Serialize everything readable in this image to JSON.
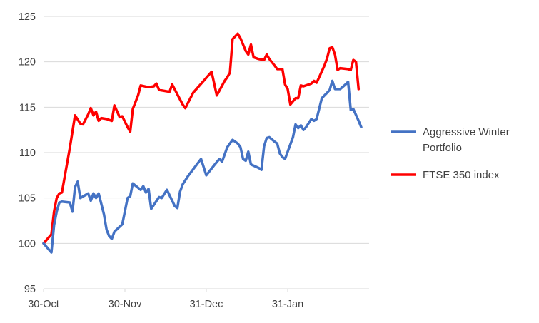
{
  "chart_data": {
    "type": "line",
    "y_ticks": [
      "95",
      "100",
      "105",
      "110",
      "115",
      "120",
      "125"
    ],
    "ylim": [
      95,
      125
    ],
    "x_ticks": [
      {
        "label": "30-Oct",
        "day": 0
      },
      {
        "label": "30-Nov",
        "day": 31
      },
      {
        "label": "31-Dec",
        "day": 62
      },
      {
        "label": "31-Jan",
        "day": 93
      }
    ],
    "xlim_days": [
      0,
      124
    ],
    "grid": "horizontal",
    "legend_position": "right",
    "series": [
      {
        "name": "Aggressive Winter Portfolio",
        "color": "#4472C4",
        "points": [
          [
            0,
            100
          ],
          [
            3,
            99
          ],
          [
            4,
            102
          ],
          [
            5,
            103.5
          ],
          [
            6,
            104.5
          ],
          [
            7,
            104.6
          ],
          [
            10,
            104.5
          ],
          [
            11,
            103.5
          ],
          [
            12,
            106.2
          ],
          [
            13,
            106.8
          ],
          [
            14,
            105
          ],
          [
            17,
            105.5
          ],
          [
            18,
            104.7
          ],
          [
            19,
            105.5
          ],
          [
            20,
            105
          ],
          [
            21,
            105.5
          ],
          [
            23,
            103.2
          ],
          [
            24,
            101.5
          ],
          [
            25,
            100.8
          ],
          [
            26,
            100.5
          ],
          [
            27,
            101.3
          ],
          [
            30,
            102.1
          ],
          [
            32,
            105
          ],
          [
            33,
            105.2
          ],
          [
            34,
            106.6
          ],
          [
            37,
            105.9
          ],
          [
            38,
            106.3
          ],
          [
            39,
            105.6
          ],
          [
            40,
            106
          ],
          [
            41,
            103.8
          ],
          [
            44,
            105.1
          ],
          [
            45,
            105
          ],
          [
            47,
            105.9
          ],
          [
            50,
            104.1
          ],
          [
            51,
            103.9
          ],
          [
            52,
            105.7
          ],
          [
            53,
            106.5
          ],
          [
            55,
            107.4
          ],
          [
            60,
            109.3
          ],
          [
            62,
            107.5
          ],
          [
            65,
            108.6
          ],
          [
            67,
            109.3
          ],
          [
            68,
            109
          ],
          [
            70,
            110.6
          ],
          [
            72,
            111.4
          ],
          [
            74,
            111
          ],
          [
            75,
            110.6
          ],
          [
            76,
            109.3
          ],
          [
            77,
            109.1
          ],
          [
            78,
            110.1
          ],
          [
            79,
            108.7
          ],
          [
            82,
            108.3
          ],
          [
            83,
            108.1
          ],
          [
            84,
            110.7
          ],
          [
            85,
            111.6
          ],
          [
            86,
            111.7
          ],
          [
            88,
            111.2
          ],
          [
            89,
            111
          ],
          [
            90,
            109.9
          ],
          [
            91,
            109.5
          ],
          [
            92,
            109.3
          ],
          [
            95,
            111.7
          ],
          [
            96,
            113.1
          ],
          [
            97,
            112.7
          ],
          [
            98,
            113
          ],
          [
            99,
            112.5
          ],
          [
            100,
            112.8
          ],
          [
            102,
            113.7
          ],
          [
            103,
            113.5
          ],
          [
            104,
            113.7
          ],
          [
            106,
            116
          ],
          [
            108,
            116.6
          ],
          [
            109,
            116.9
          ],
          [
            110,
            117.9
          ],
          [
            111,
            117
          ],
          [
            113,
            117
          ],
          [
            115,
            117.5
          ],
          [
            116,
            117.8
          ],
          [
            117,
            114.7
          ],
          [
            118,
            114.8
          ],
          [
            120,
            113.5
          ],
          [
            121,
            112.8
          ]
        ]
      },
      {
        "name": "FTSE 350 index",
        "color": "#FF0000",
        "points": [
          [
            0,
            100
          ],
          [
            3,
            101
          ],
          [
            4,
            103.5
          ],
          [
            5,
            105
          ],
          [
            6,
            105.5
          ],
          [
            7,
            105.6
          ],
          [
            10,
            110.5
          ],
          [
            12,
            114.1
          ],
          [
            14,
            113.2
          ],
          [
            15,
            113.1
          ],
          [
            17,
            114.2
          ],
          [
            18,
            114.9
          ],
          [
            19,
            114.1
          ],
          [
            20,
            114.5
          ],
          [
            21,
            113.5
          ],
          [
            22,
            113.8
          ],
          [
            24,
            113.7
          ],
          [
            25,
            113.6
          ],
          [
            26,
            113.5
          ],
          [
            27,
            115.2
          ],
          [
            29,
            113.9
          ],
          [
            30,
            114
          ],
          [
            32,
            112.8
          ],
          [
            33,
            112.3
          ],
          [
            34,
            114.8
          ],
          [
            36,
            116.3
          ],
          [
            37,
            117.4
          ],
          [
            40,
            117.2
          ],
          [
            42,
            117.3
          ],
          [
            43,
            117.6
          ],
          [
            44,
            116.9
          ],
          [
            48,
            116.7
          ],
          [
            49,
            117.5
          ],
          [
            53,
            115.3
          ],
          [
            54,
            114.9
          ],
          [
            57,
            116.6
          ],
          [
            61,
            117.9
          ],
          [
            64,
            118.9
          ],
          [
            66,
            116.3
          ],
          [
            69,
            117.9
          ],
          [
            70,
            118.3
          ],
          [
            71,
            118.8
          ],
          [
            72,
            122.5
          ],
          [
            74,
            123.1
          ],
          [
            75,
            122.6
          ],
          [
            77,
            121.2
          ],
          [
            78,
            120.8
          ],
          [
            79,
            121.9
          ],
          [
            80,
            120.5
          ],
          [
            82,
            120.3
          ],
          [
            84,
            120.2
          ],
          [
            85,
            120.8
          ],
          [
            86,
            120.3
          ],
          [
            88,
            119.6
          ],
          [
            89,
            119.2
          ],
          [
            91,
            119.2
          ],
          [
            92,
            117.5
          ],
          [
            93,
            117
          ],
          [
            94,
            115.3
          ],
          [
            96,
            116
          ],
          [
            97,
            116
          ],
          [
            98,
            117.4
          ],
          [
            99,
            117.3
          ],
          [
            102,
            117.6
          ],
          [
            103,
            117.9
          ],
          [
            104,
            117.7
          ],
          [
            105,
            118.3
          ],
          [
            107,
            119.6
          ],
          [
            108,
            120.4
          ],
          [
            109,
            121.5
          ],
          [
            110,
            121.6
          ],
          [
            111,
            120.8
          ],
          [
            112,
            119.1
          ],
          [
            113,
            119.3
          ],
          [
            116,
            119.2
          ],
          [
            117,
            119.1
          ],
          [
            118,
            120.2
          ],
          [
            119,
            120
          ],
          [
            120,
            117
          ]
        ]
      }
    ]
  }
}
